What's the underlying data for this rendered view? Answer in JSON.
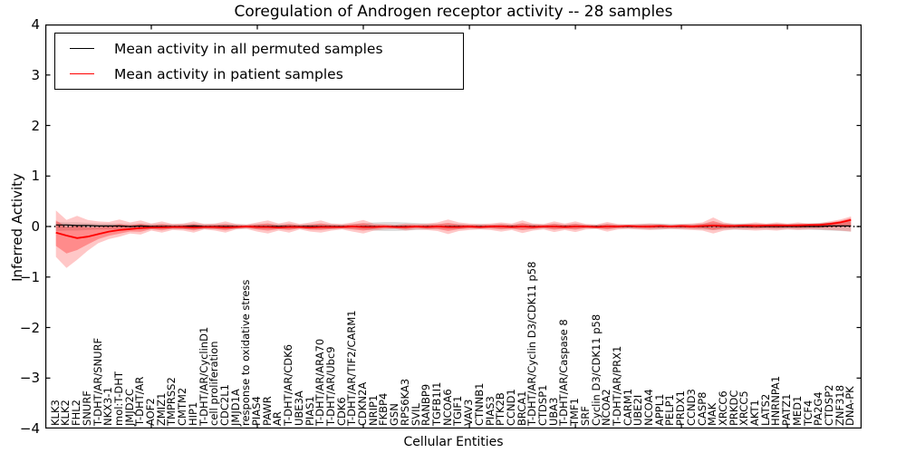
{
  "chart_data": {
    "type": "line",
    "title": "Coregulation of Androgen receptor activity -- 28 samples",
    "xlabel": "Cellular Entities",
    "ylabel": "Inferred Activity",
    "ylim": [
      -4,
      4
    ],
    "ytick_labels": [
      "4",
      "3",
      "2",
      "1",
      "0",
      "−1",
      "−2",
      "−3",
      "−4"
    ],
    "xticks_index": [
      10,
      20,
      30,
      40,
      50,
      60,
      70
    ],
    "grid": false,
    "legend_position": "upper left",
    "categories": [
      "KLK3",
      "KLK2",
      "FHL2",
      "SNURF",
      "T-DHT/AR/SNURF",
      "NKX3-1",
      "mol:T-DHT",
      "JMJD2C",
      "T-DHT/AR",
      "AOF2",
      "ZMIZ1",
      "TMPRSS2",
      "CMTM2",
      "HIP1",
      "T-DHT/AR/CyclinD1",
      "cell proliferation",
      "CDC2L1",
      "JMJD1A",
      "response to oxidative stress",
      "PIAS4",
      "PAWR",
      "AR",
      "T-DHT/AR/CDK6",
      "UBE3A",
      "PIAS1",
      "T-DHT/AR/ARA70",
      "T-DHT/AR/Ubc9",
      "CDK6",
      "T-DHT/AR/TIF2/CARM1",
      "CDKN2A",
      "NRIP1",
      "FKBP4",
      "GSN",
      "RPS6KA3",
      "SVIL",
      "RANBP9",
      "TGFB1I1",
      "NCOA6",
      "TGIF1",
      "VAV3",
      "CTNNB1",
      "PIAS3",
      "PTK2B",
      "CCND1",
      "BRCA1",
      "T-DHT/AR/Cyclin D3/CDK11 p58",
      "CTDSP1",
      "UBA3",
      "T-DHT/AR/Caspase 8",
      "TMF1",
      "SRF",
      "Cyclin D3/CDK11 p58",
      "NCOA2",
      "T-DHT/AR/PRX1",
      "CARM1",
      "UBE2I",
      "NCOA4",
      "APPL1",
      "PELP1",
      "PRDX1",
      "CCND3",
      "CASP8",
      "MAK",
      "XRCC6",
      "PRKDC",
      "XRCC5",
      "AKT1",
      "LATS2",
      "HNRNPA1",
      "PATZ1",
      "MED1",
      "TCF4",
      "PA2G4",
      "CTDSP2",
      "ZNF318",
      "DNA-PK"
    ],
    "series": [
      {
        "name": "Mean activity in all permuted samples",
        "color": "#000000",
        "values": [
          0.03,
          0.03,
          0.02,
          0.02,
          0.01,
          0.01,
          0.01,
          0.0,
          0.01,
          0.0,
          0.0,
          0.0,
          0.0,
          0.01,
          0.0,
          0.0,
          0.0,
          0.0,
          0.0,
          0.0,
          0.0,
          0.0,
          0.0,
          0.0,
          0.0,
          0.0,
          0.0,
          0.0,
          0.0,
          0.0,
          0.0,
          0.0,
          0.0,
          0.0,
          0.0,
          0.0,
          0.0,
          0.0,
          0.0,
          0.0,
          0.0,
          0.0,
          0.0,
          0.0,
          0.0,
          0.0,
          0.0,
          0.0,
          0.0,
          0.0,
          0.0,
          0.0,
          0.0,
          0.0,
          0.0,
          0.0,
          0.0,
          0.0,
          0.0,
          0.0,
          0.0,
          0.0,
          0.01,
          0.0,
          0.0,
          0.0,
          0.0,
          0.0,
          0.0,
          0.0,
          0.0,
          0.0,
          0.0,
          0.01,
          0.01,
          0.01
        ]
      },
      {
        "name": "Mean activity in patient samples",
        "color": "#ff0000",
        "values": [
          -0.12,
          -0.18,
          -0.23,
          -0.2,
          -0.15,
          -0.1,
          -0.07,
          -0.05,
          -0.03,
          -0.02,
          -0.02,
          -0.01,
          -0.01,
          -0.02,
          -0.01,
          -0.01,
          -0.02,
          -0.01,
          0.0,
          -0.01,
          -0.01,
          -0.02,
          -0.01,
          -0.01,
          -0.02,
          -0.01,
          -0.01,
          -0.01,
          0.0,
          -0.01,
          -0.01,
          0.0,
          -0.01,
          -0.01,
          0.0,
          -0.01,
          0.0,
          -0.01,
          -0.01,
          0.0,
          -0.01,
          0.0,
          0.0,
          -0.01,
          0.0,
          -0.01,
          0.0,
          0.0,
          -0.01,
          0.0,
          0.0,
          -0.01,
          0.0,
          0.0,
          0.01,
          0.0,
          0.0,
          0.01,
          0.0,
          0.01,
          0.0,
          0.01,
          0.02,
          0.01,
          0.01,
          0.02,
          0.01,
          0.02,
          0.02,
          0.02,
          0.02,
          0.03,
          0.03,
          0.05,
          0.08,
          0.13
        ]
      }
    ],
    "bands": {
      "permuted_gray": {
        "color": "#000000",
        "opacity": 0.13,
        "halfwidth": [
          0.09,
          0.08,
          0.08,
          0.07,
          0.06,
          0.06,
          0.06,
          0.05,
          0.06,
          0.05,
          0.05,
          0.05,
          0.05,
          0.06,
          0.05,
          0.05,
          0.05,
          0.05,
          0.04,
          0.05,
          0.05,
          0.05,
          0.05,
          0.04,
          0.05,
          0.05,
          0.05,
          0.04,
          0.05,
          0.06,
          0.08,
          0.09,
          0.09,
          0.08,
          0.07,
          0.06,
          0.05,
          0.05,
          0.05,
          0.04,
          0.05,
          0.04,
          0.05,
          0.04,
          0.05,
          0.05,
          0.04,
          0.05,
          0.04,
          0.05,
          0.04,
          0.04,
          0.05,
          0.04,
          0.04,
          0.05,
          0.06,
          0.06,
          0.05,
          0.05,
          0.05,
          0.06,
          0.07,
          0.06,
          0.06,
          0.06,
          0.05,
          0.05,
          0.06,
          0.05,
          0.06,
          0.06,
          0.07,
          0.08,
          0.09,
          0.1
        ]
      },
      "patient_red_outer": {
        "color": "#ff0000",
        "opacity": 0.22,
        "hi": [
          0.32,
          0.13,
          0.21,
          0.13,
          0.1,
          0.09,
          0.14,
          0.08,
          0.12,
          0.06,
          0.1,
          0.05,
          0.06,
          0.1,
          0.05,
          0.06,
          0.1,
          0.05,
          0.04,
          0.08,
          0.12,
          0.06,
          0.1,
          0.05,
          0.08,
          0.12,
          0.06,
          0.05,
          0.08,
          0.13,
          0.06,
          0.05,
          0.04,
          0.06,
          0.05,
          0.06,
          0.08,
          0.14,
          0.08,
          0.06,
          0.05,
          0.06,
          0.08,
          0.06,
          0.12,
          0.06,
          0.05,
          0.1,
          0.06,
          0.1,
          0.05,
          0.04,
          0.09,
          0.05,
          0.04,
          0.05,
          0.06,
          0.05,
          0.04,
          0.05,
          0.06,
          0.08,
          0.18,
          0.08,
          0.05,
          0.06,
          0.08,
          0.06,
          0.08,
          0.06,
          0.08,
          0.06,
          0.07,
          0.1,
          0.14,
          0.2
        ],
        "lo": [
          -0.6,
          -0.82,
          -0.66,
          -0.48,
          -0.33,
          -0.25,
          -0.2,
          -0.14,
          -0.16,
          -0.08,
          -0.12,
          -0.07,
          -0.08,
          -0.12,
          -0.06,
          -0.08,
          -0.12,
          -0.06,
          -0.05,
          -0.1,
          -0.14,
          -0.08,
          -0.12,
          -0.06,
          -0.1,
          -0.12,
          -0.08,
          -0.06,
          -0.1,
          -0.14,
          -0.08,
          -0.06,
          -0.05,
          -0.08,
          -0.06,
          -0.07,
          -0.09,
          -0.15,
          -0.09,
          -0.07,
          -0.06,
          -0.07,
          -0.1,
          -0.07,
          -0.13,
          -0.08,
          -0.06,
          -0.11,
          -0.07,
          -0.11,
          -0.06,
          -0.05,
          -0.1,
          -0.06,
          -0.05,
          -0.06,
          -0.07,
          -0.06,
          -0.05,
          -0.06,
          -0.07,
          -0.08,
          -0.14,
          -0.08,
          -0.06,
          -0.07,
          -0.08,
          -0.07,
          -0.08,
          -0.06,
          -0.07,
          -0.06,
          -0.06,
          -0.07,
          -0.08,
          -0.1
        ]
      },
      "patient_red_inner_scale": 0.55,
      "patient_red_inner_opacity": 0.3
    },
    "zero_line": {
      "y": 0,
      "style": "dotted",
      "color": "#000000"
    }
  }
}
